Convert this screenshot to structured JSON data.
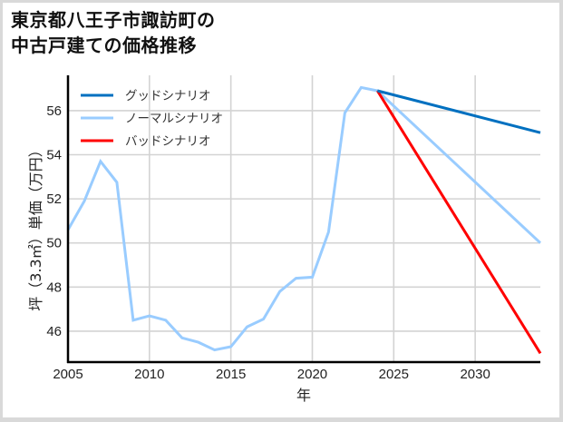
{
  "title_line1": "東京都八王子市諏訪町の",
  "title_line2": "中古戸建ての価格推移",
  "chart_data": {
    "type": "line",
    "title": "東京都八王子市諏訪町の中古戸建ての価格推移",
    "xlabel": "年",
    "ylabel": "坪（3.3㎡）単価（万円）",
    "xlim": [
      2005,
      2034
    ],
    "ylim": [
      44.6,
      57.6
    ],
    "xticks": [
      2005,
      2010,
      2015,
      2020,
      2025,
      2030
    ],
    "yticks": [
      46,
      48,
      50,
      52,
      54,
      56
    ],
    "grid": true,
    "legend_position": "upper left",
    "series": [
      {
        "name": "グッドシナリオ",
        "color": "#0070c0",
        "x": [
          2024,
          2034
        ],
        "values": [
          56.9,
          55.0
        ]
      },
      {
        "name": "ノーマルシナリオ",
        "color": "#99ccff",
        "x": [
          2005,
          2006,
          2007,
          2008,
          2009,
          2010,
          2011,
          2012,
          2013,
          2014,
          2015,
          2016,
          2017,
          2018,
          2019,
          2020,
          2021,
          2022,
          2023,
          2024,
          2034
        ],
        "values": [
          50.6,
          51.9,
          53.7,
          52.75,
          46.5,
          46.7,
          46.5,
          45.7,
          45.5,
          45.15,
          45.3,
          46.2,
          46.55,
          47.8,
          48.4,
          48.45,
          50.5,
          55.9,
          57.05,
          56.9,
          50.0
        ]
      },
      {
        "name": "バッドシナリオ",
        "color": "#ff0000",
        "x": [
          2024,
          2034
        ],
        "values": [
          56.9,
          45.0
        ]
      }
    ]
  }
}
